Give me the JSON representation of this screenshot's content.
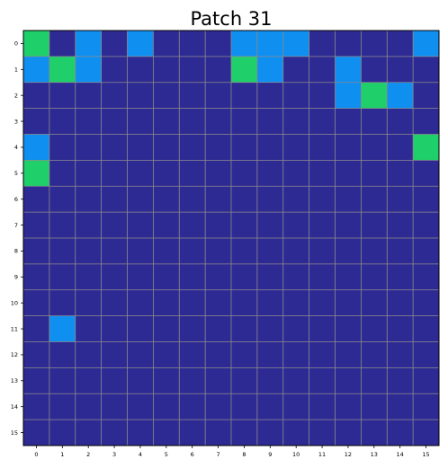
{
  "chart_data": {
    "type": "heatmap",
    "title": "Patch 31",
    "xlabel": "",
    "ylabel": "",
    "x_ticks": [
      "0",
      "1",
      "2",
      "3",
      "4",
      "5",
      "6",
      "7",
      "8",
      "9",
      "10",
      "11",
      "12",
      "13",
      "14",
      "15"
    ],
    "y_ticks": [
      "0",
      "1",
      "2",
      "3",
      "4",
      "5",
      "6",
      "7",
      "8",
      "9",
      "10",
      "11",
      "12",
      "13",
      "14",
      "15"
    ],
    "grid": true,
    "palette": {
      "0": "#2e2a93",
      "1": "#0f8ff0",
      "2": "#1fcf6a"
    },
    "grid_color": "#8c8c8c",
    "values": [
      [
        2,
        0,
        1,
        0,
        1,
        0,
        0,
        0,
        1,
        1,
        1,
        0,
        0,
        0,
        0,
        1
      ],
      [
        1,
        2,
        1,
        0,
        0,
        0,
        0,
        0,
        2,
        1,
        0,
        0,
        1,
        0,
        0,
        0
      ],
      [
        0,
        0,
        0,
        0,
        0,
        0,
        0,
        0,
        0,
        0,
        0,
        0,
        1,
        2,
        1,
        0
      ],
      [
        0,
        0,
        0,
        0,
        0,
        0,
        0,
        0,
        0,
        0,
        0,
        0,
        0,
        0,
        0,
        0
      ],
      [
        1,
        0,
        0,
        0,
        0,
        0,
        0,
        0,
        0,
        0,
        0,
        0,
        0,
        0,
        0,
        2
      ],
      [
        2,
        0,
        0,
        0,
        0,
        0,
        0,
        0,
        0,
        0,
        0,
        0,
        0,
        0,
        0,
        0
      ],
      [
        0,
        0,
        0,
        0,
        0,
        0,
        0,
        0,
        0,
        0,
        0,
        0,
        0,
        0,
        0,
        0
      ],
      [
        0,
        0,
        0,
        0,
        0,
        0,
        0,
        0,
        0,
        0,
        0,
        0,
        0,
        0,
        0,
        0
      ],
      [
        0,
        0,
        0,
        0,
        0,
        0,
        0,
        0,
        0,
        0,
        0,
        0,
        0,
        0,
        0,
        0
      ],
      [
        0,
        0,
        0,
        0,
        0,
        0,
        0,
        0,
        0,
        0,
        0,
        0,
        0,
        0,
        0,
        0
      ],
      [
        0,
        0,
        0,
        0,
        0,
        0,
        0,
        0,
        0,
        0,
        0,
        0,
        0,
        0,
        0,
        0
      ],
      [
        0,
        1,
        0,
        0,
        0,
        0,
        0,
        0,
        0,
        0,
        0,
        0,
        0,
        0,
        0,
        0
      ],
      [
        0,
        0,
        0,
        0,
        0,
        0,
        0,
        0,
        0,
        0,
        0,
        0,
        0,
        0,
        0,
        0
      ],
      [
        0,
        0,
        0,
        0,
        0,
        0,
        0,
        0,
        0,
        0,
        0,
        0,
        0,
        0,
        0,
        0
      ],
      [
        0,
        0,
        0,
        0,
        0,
        0,
        0,
        0,
        0,
        0,
        0,
        0,
        0,
        0,
        0,
        0
      ],
      [
        0,
        0,
        0,
        0,
        0,
        0,
        0,
        0,
        0,
        0,
        0,
        0,
        0,
        0,
        0,
        0
      ]
    ]
  }
}
